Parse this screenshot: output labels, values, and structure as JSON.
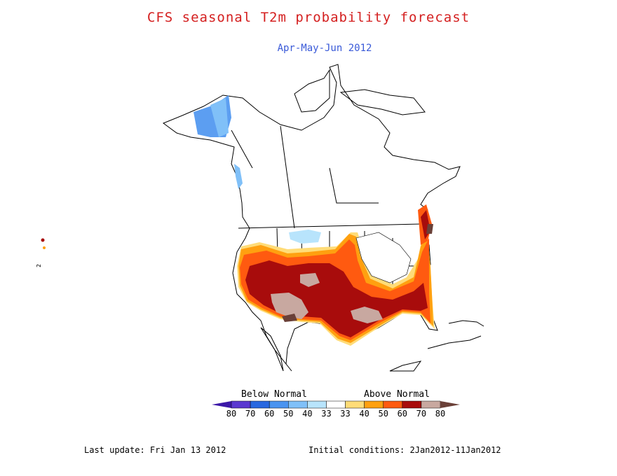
{
  "title": "CFS seasonal T2m probability forecast",
  "subtitle": "Apr-May-Jun 2012",
  "legend": {
    "below_label": "Below Normal",
    "above_label": "Above Normal",
    "ticks": [
      "80",
      "70",
      "60",
      "50",
      "40",
      "33",
      "33",
      "40",
      "50",
      "60",
      "70",
      "80"
    ],
    "colors": [
      "#3c18a8",
      "#5a38d0",
      "#2868e0",
      "#4a94f0",
      "#80c0f8",
      "#b8e4fc",
      "#ffffff",
      "#ffdc78",
      "#ffa010",
      "#ff5a10",
      "#a80c0c",
      "#c8a8a0",
      "#6a4038"
    ]
  },
  "footer": {
    "last_update": "Last update: Fri Jan 13 2012",
    "initial_conditions": "Initial conditions: 2Jan2012-11Jan2012"
  }
}
